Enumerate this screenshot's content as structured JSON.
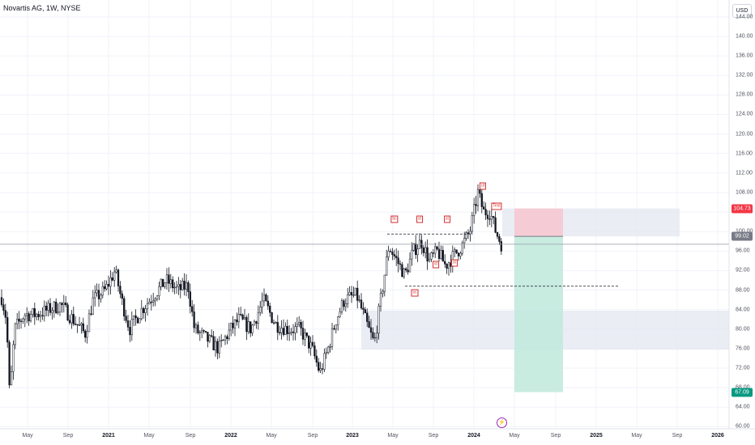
{
  "header": {
    "title": "Novartis AG, 1W, NYSE",
    "currency_button": "USD"
  },
  "price_axis": {
    "ticks": [
      "144.00",
      "140.00",
      "136.00",
      "132.00",
      "128.00",
      "124.00",
      "120.00",
      "116.00",
      "112.00",
      "108.00",
      "104.00",
      "100.00",
      "96.00",
      "92.00",
      "88.00",
      "84.00",
      "80.00",
      "76.00",
      "72.00",
      "68.00",
      "64.00",
      "60.00"
    ],
    "tick_values": [
      144,
      140,
      136,
      132,
      128,
      124,
      120,
      116,
      112,
      108,
      104,
      100,
      96,
      92,
      88,
      84,
      80,
      76,
      72,
      68,
      64,
      60
    ]
  },
  "time_axis": {
    "labels": [
      {
        "text": "May",
        "year": false
      },
      {
        "text": "Sep",
        "year": false
      },
      {
        "text": "2021",
        "year": true
      },
      {
        "text": "May",
        "year": false
      },
      {
        "text": "Sep",
        "year": false
      },
      {
        "text": "2022",
        "year": true
      },
      {
        "text": "May",
        "year": false
      },
      {
        "text": "Sep",
        "year": false
      },
      {
        "text": "2023",
        "year": true
      },
      {
        "text": "May",
        "year": false
      },
      {
        "text": "Sep",
        "year": false
      },
      {
        "text": "2024",
        "year": true
      },
      {
        "text": "May",
        "year": false
      },
      {
        "text": "Sep",
        "year": false
      },
      {
        "text": "2025",
        "year": true
      },
      {
        "text": "May",
        "year": false
      },
      {
        "text": "Sep",
        "year": false
      },
      {
        "text": "2026",
        "year": true
      }
    ]
  },
  "price_tags": {
    "stop": {
      "text": "104.73",
      "value": 104.73,
      "color": "#f23645"
    },
    "entry": {
      "text": "99.02",
      "value": 99.02,
      "color": "#787b86"
    },
    "target": {
      "text": "67.09",
      "value": 67.09,
      "color": "#089981"
    }
  },
  "current_price": 97.4,
  "wyckoff_labels": [
    {
      "text": "bc",
      "price": 102.5
    },
    {
      "text": "st",
      "price": 102.5
    },
    {
      "text": "st",
      "price": 102.5
    },
    {
      "text": "st",
      "price": 93.2
    },
    {
      "text": "st",
      "price": 93.5
    },
    {
      "text": "sc",
      "price": 87.5
    },
    {
      "text": "ut",
      "price": 109.3
    },
    {
      "text": "Test",
      "price": 105.2
    }
  ],
  "levels": {
    "resistance": 99.5,
    "support": 88.8
  },
  "zones": {
    "demand": {
      "top": 83.8,
      "bottom": 75.8
    },
    "supply": {
      "top": 104.73,
      "bottom": 99.02
    },
    "position": {
      "stop": 104.73,
      "entry": 99.02,
      "target": 67.09
    }
  },
  "colors": {
    "up": "#131722",
    "down": "#131722",
    "grid": "#f0f3fa",
    "zone": "#e3e6ef",
    "stop_zone": "#f7c6cf",
    "target_zone": "#bfe9dc"
  },
  "events": {
    "icon": "lightning-icon"
  }
}
